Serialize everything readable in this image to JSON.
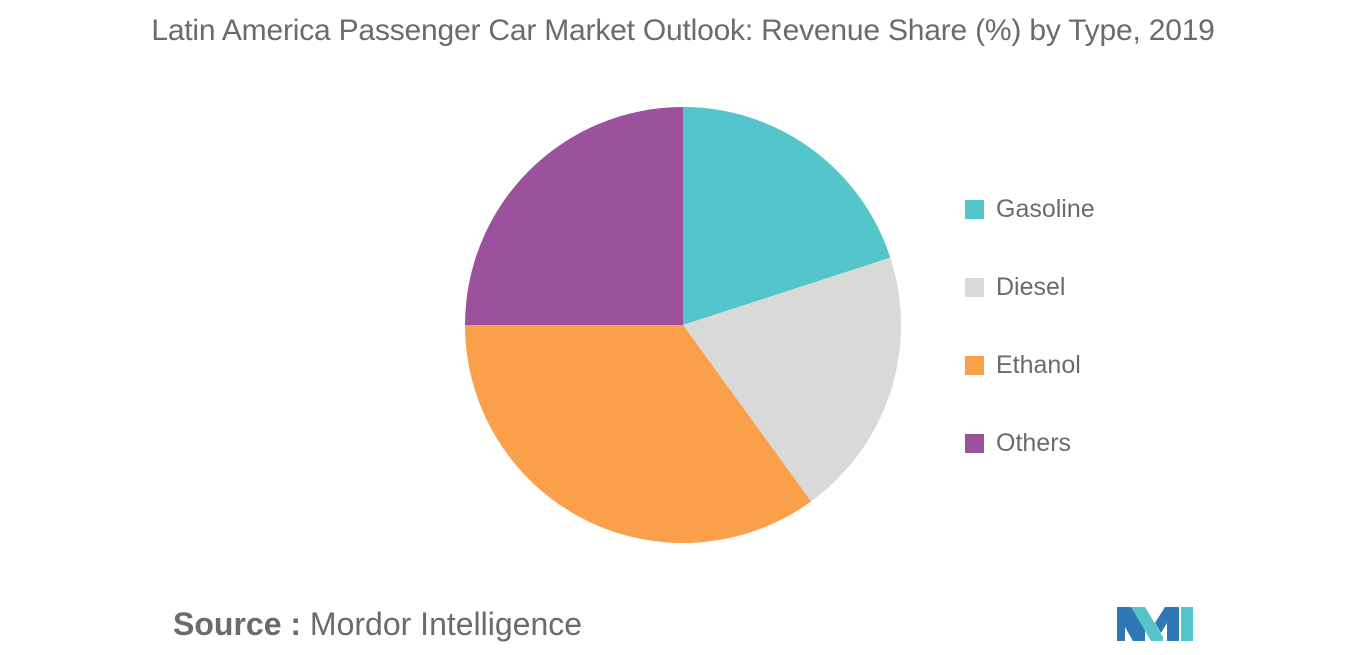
{
  "chart_data": {
    "type": "pie",
    "title": "Latin America Passenger Car Market Outlook: Revenue Share (%) by Type, 2019",
    "slices": [
      {
        "label": "Gasoline",
        "value": 20,
        "color": "#53c5cb"
      },
      {
        "label": "Diesel",
        "value": 20,
        "color": "#d9d9d9"
      },
      {
        "label": "Ethanol",
        "value": 35,
        "color": "#fba04a"
      },
      {
        "label": "Others",
        "value": 25,
        "color": "#9c519d"
      }
    ]
  },
  "legend": {
    "items": [
      {
        "label": "Gasoline",
        "color": "#53c5cb"
      },
      {
        "label": "Diesel",
        "color": "#d9d9d9"
      },
      {
        "label": "Ethanol",
        "color": "#fba04a"
      },
      {
        "label": "Others",
        "color": "#9c519d"
      }
    ]
  },
  "source": {
    "prefix": "Source :",
    "name": "Mordor Intelligence"
  },
  "logo": {
    "icon": "mordor-intelligence-logo-icon",
    "colors": [
      "#2d78b5",
      "#53c5cb"
    ]
  }
}
